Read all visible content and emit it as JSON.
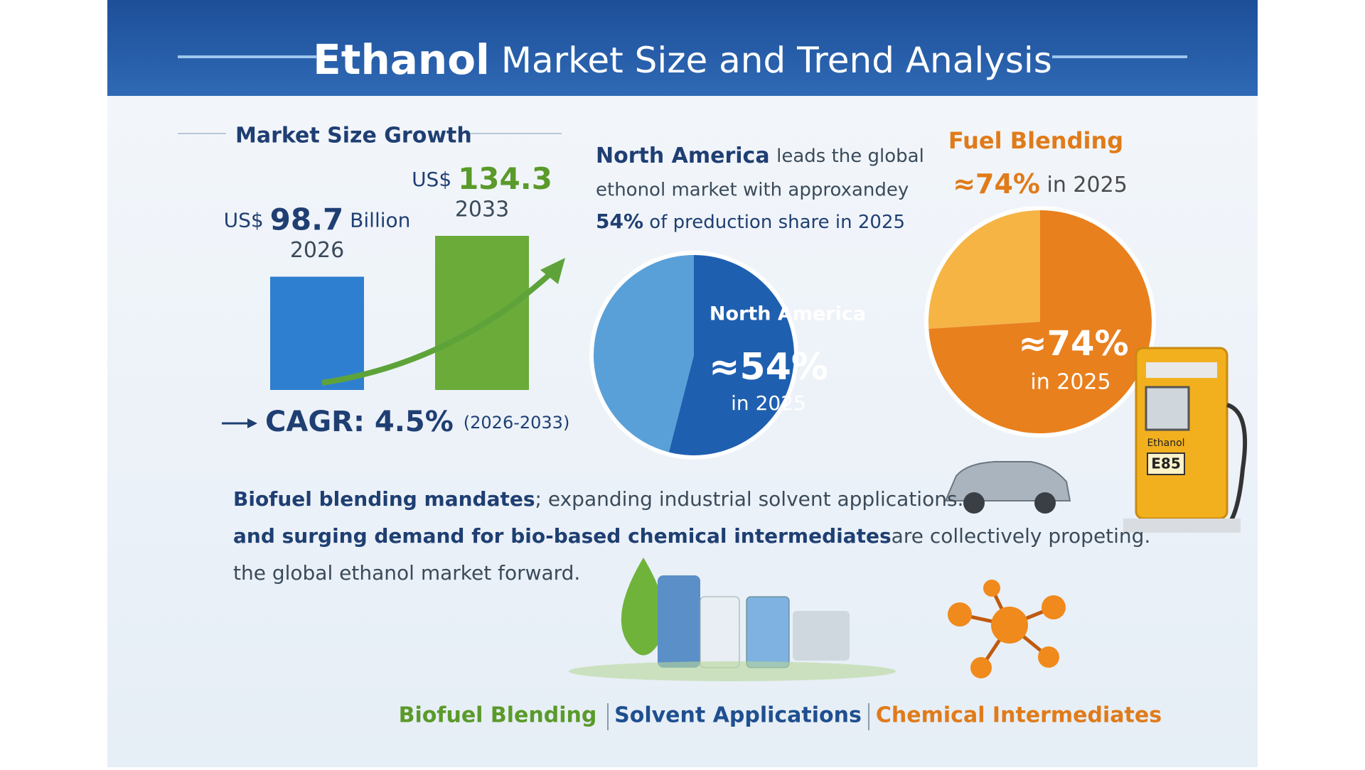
{
  "header": {
    "title_bold": "Ethanol",
    "title_rest": "Market Size and Trend Analysis"
  },
  "market_size": {
    "heading": "Market Size Growth",
    "bars": [
      {
        "currency": "US$",
        "value": 98.7,
        "unit": "Billion",
        "year": "2026",
        "color": "#2f7fd0"
      },
      {
        "currency": "US$",
        "value": 134.3,
        "year": "2033",
        "color": "#6aab3a"
      }
    ],
    "cagr": {
      "label": "CAGR:",
      "value": 4.5,
      "value_label": "4.5%",
      "period": "(2026-2033)"
    }
  },
  "north_america": {
    "text": {
      "lead": "North America",
      "line1_rest": "leads the global",
      "line2": "ethonol market with approxandey",
      "share": "54%",
      "line3_rest": "of preduction share in 2025"
    },
    "pie": {
      "label": "North America",
      "value": 54,
      "value_label": "≈54%",
      "period": "in 2025",
      "color": "#1f5fb0"
    }
  },
  "fuel_blending": {
    "heading": "Fuel Blending",
    "summary_value": "≈74%",
    "summary_period": "in 2025",
    "pie": {
      "value": 74,
      "value_label": "≈74%",
      "period": "in 2025",
      "color": "#e8801e"
    }
  },
  "body": {
    "line1_bold": "Biofuel blending mandates",
    "line1_rest": "; expanding industrial solvent applications.",
    "line2_bold": "and surging demand for bio-based chemical intermediates",
    "line2_rest": "are collectively propeting.",
    "line3": "the global ethanol market forward."
  },
  "pump": {
    "label": "Ethanol",
    "grade": "E85"
  },
  "footer": {
    "items": [
      "Biofuel Blending",
      "Solvent Applications",
      "Chemical Intermediates"
    ]
  }
}
